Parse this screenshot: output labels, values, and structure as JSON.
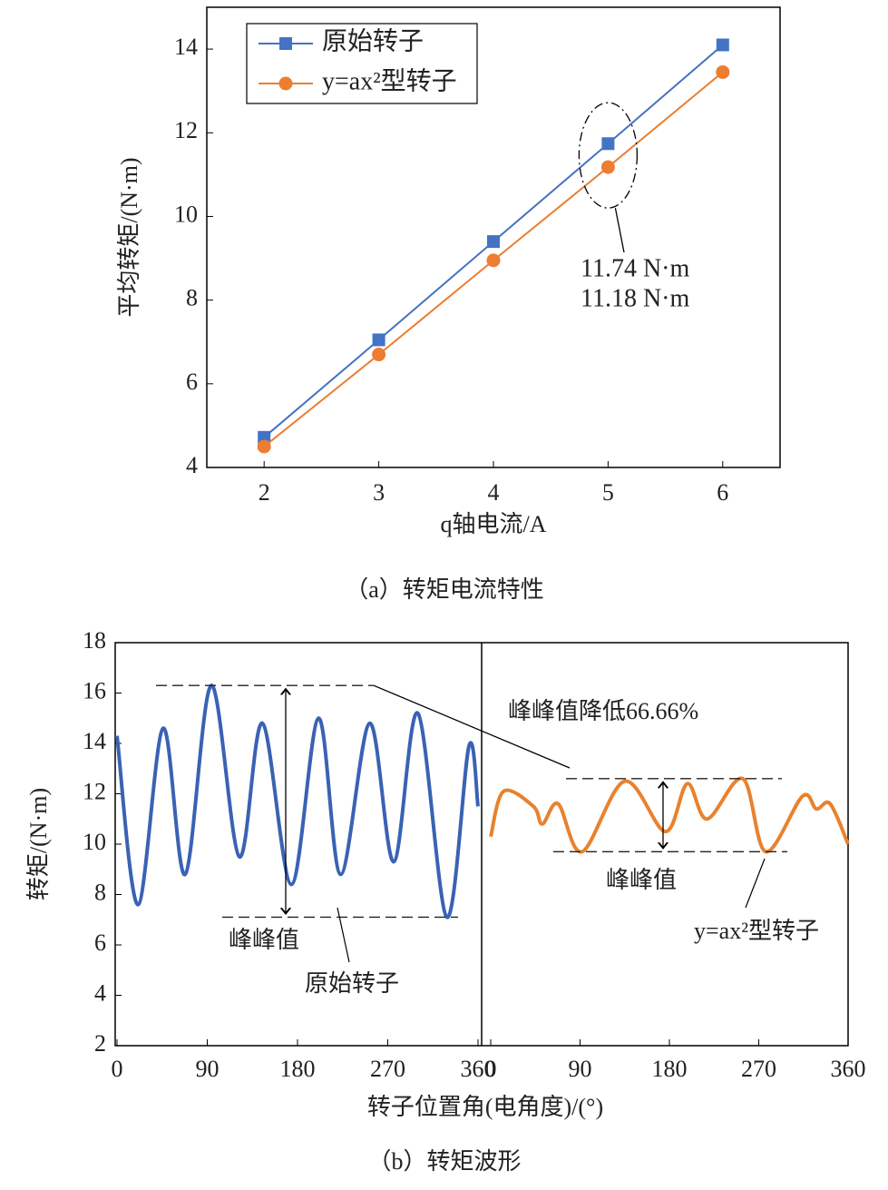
{
  "chart_data": [
    {
      "type": "line",
      "x_label": "q轴电流/A",
      "y_label": "平均转矩/(N·m)",
      "caption": "（a）转矩电流特性",
      "x": [
        2,
        3,
        4,
        5,
        6
      ],
      "xlim": [
        1.5,
        6.5
      ],
      "xticks": [
        2,
        3,
        4,
        5,
        6
      ],
      "ylim": [
        4,
        15
      ],
      "yticks": [
        4,
        6,
        8,
        10,
        12,
        14
      ],
      "legend": "top-left",
      "series": [
        {
          "name": "原始转子",
          "color": "#4472c4",
          "marker": "square",
          "values": [
            4.72,
            7.05,
            9.4,
            11.74,
            14.1
          ]
        },
        {
          "name": "y=ax²型转子",
          "color": "#ed7d31",
          "marker": "circle",
          "values": [
            4.5,
            6.7,
            8.95,
            11.18,
            13.45
          ]
        }
      ],
      "annotations": [
        "11.74 N·m",
        "11.18 N·m"
      ]
    },
    {
      "type": "waveform",
      "x_label": "转子位置角(电角度)/(°)",
      "y_label": "转矩/(N·m)",
      "caption": "（b）转矩波形",
      "xlim": [
        0,
        360
      ],
      "xticks": [
        0,
        90,
        180,
        270,
        360
      ],
      "ylim": [
        2,
        18
      ],
      "yticks": [
        2,
        4,
        6,
        8,
        10,
        12,
        14,
        16,
        18
      ],
      "series": [
        {
          "name": "原始转子",
          "color": "#3a62b4",
          "x": [
            0,
            21,
            46,
            68,
            94,
            122,
            145,
            174,
            201,
            223,
            252,
            276,
            300,
            329,
            351,
            360
          ],
          "values": [
            14.3,
            7.6,
            14.6,
            8.8,
            16.3,
            9.5,
            14.8,
            8.4,
            15.0,
            8.8,
            14.8,
            9.3,
            15.2,
            7.1,
            13.9,
            11.5
          ]
        },
        {
          "name": "y=ax²型转子",
          "color": "#e8822e",
          "x": [
            0,
            13,
            43,
            52,
            68,
            92,
            135,
            176,
            198,
            218,
            254,
            277,
            314,
            328,
            342,
            360
          ],
          "values": [
            10.3,
            12.1,
            11.5,
            10.8,
            11.6,
            9.7,
            12.5,
            10.5,
            12.4,
            11.0,
            12.6,
            9.7,
            11.9,
            11.4,
            11.6,
            10.0
          ]
        }
      ],
      "annotations": [
        "峰峰值降低66.66%",
        "峰峰值",
        "峰峰值"
      ]
    }
  ]
}
